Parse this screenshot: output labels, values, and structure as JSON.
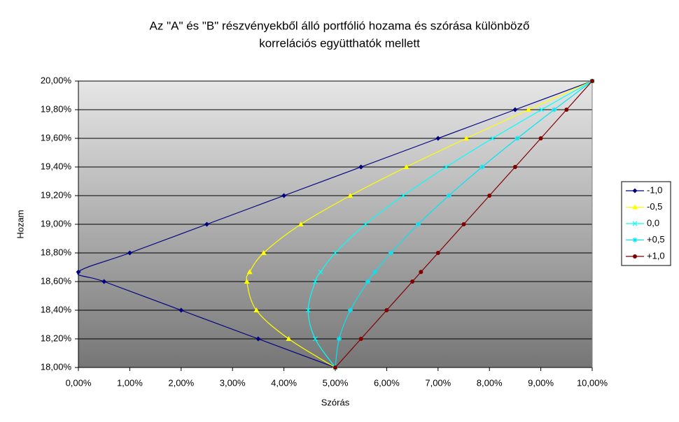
{
  "chart_data": {
    "type": "scatter",
    "title": [
      "Az \"A\" és \"B\" részvényekből álló portfólió hozama és szórása különböző",
      "korrelációs együtthatók mellett"
    ],
    "x_label": "Szórás",
    "y_label": "Hozam",
    "xlim": [
      0,
      10
    ],
    "ylim": [
      18,
      20
    ],
    "xticks": [
      {
        "value": 0,
        "label": "0,00%"
      },
      {
        "value": 1,
        "label": "1,00%"
      },
      {
        "value": 2,
        "label": "2,00%"
      },
      {
        "value": 3,
        "label": "3,00%"
      },
      {
        "value": 4,
        "label": "4,00%"
      },
      {
        "value": 5,
        "label": "5,00%"
      },
      {
        "value": 6,
        "label": "6,00%"
      },
      {
        "value": 7,
        "label": "7,00%"
      },
      {
        "value": 8,
        "label": "8,00%"
      },
      {
        "value": 9,
        "label": "9,00%"
      },
      {
        "value": 10,
        "label": "10,00%"
      }
    ],
    "yticks": [
      {
        "value": 18,
        "label": "18,00%"
      },
      {
        "value": 18.2,
        "label": "18,20%"
      },
      {
        "value": 18.4,
        "label": "18,40%"
      },
      {
        "value": 18.6,
        "label": "18,60%"
      },
      {
        "value": 18.8,
        "label": "18,80%"
      },
      {
        "value": 19,
        "label": "19,00%"
      },
      {
        "value": 19.2,
        "label": "19,20%"
      },
      {
        "value": 19.4,
        "label": "19,40%"
      },
      {
        "value": 19.6,
        "label": "19,60%"
      },
      {
        "value": 19.8,
        "label": "19,80%"
      },
      {
        "value": 20,
        "label": "20,00%"
      }
    ],
    "grid": true,
    "legend": "right",
    "series": [
      {
        "name": "-1,0",
        "color": "#000080",
        "marker": "diamond",
        "x": [
          5,
          3.5,
          2,
          0.5,
          0,
          1,
          2.5,
          4,
          5.5,
          7,
          8.5,
          10
        ],
        "values": [
          18,
          18.2,
          18.4,
          18.6,
          18.667,
          18.8,
          19,
          19.2,
          19.4,
          19.6,
          19.8,
          20
        ]
      },
      {
        "name": "-0,5",
        "color": "#ffff00",
        "marker": "triangle",
        "x": [
          5,
          4.093,
          3.464,
          3.279,
          3.333,
          3.606,
          4.33,
          5.292,
          6.384,
          7.55,
          8.761,
          10
        ],
        "values": [
          18,
          18.2,
          18.4,
          18.6,
          18.667,
          18.8,
          19,
          19.2,
          19.4,
          19.6,
          19.8,
          20
        ]
      },
      {
        "name": "0,0",
        "color": "#00ffff",
        "marker": "cross",
        "x": [
          5,
          4.61,
          4.472,
          4.61,
          4.714,
          5,
          5.59,
          6.325,
          7.159,
          8.062,
          9.014,
          10
        ],
        "values": [
          18,
          18.2,
          18.4,
          18.6,
          18.667,
          18.8,
          19,
          19.2,
          19.4,
          19.6,
          19.8,
          20
        ]
      },
      {
        "name": "+0,5",
        "color": "#00e6f5",
        "marker": "star",
        "x": [
          5,
          5.074,
          5.292,
          5.635,
          5.774,
          6.083,
          6.614,
          7.211,
          7.858,
          8.544,
          9.26,
          10
        ],
        "values": [
          18,
          18.2,
          18.4,
          18.6,
          18.667,
          18.8,
          19,
          19.2,
          19.4,
          19.6,
          19.8,
          20
        ]
      },
      {
        "name": "+1,0",
        "color": "#800000",
        "marker": "circle",
        "x": [
          5,
          5.5,
          6,
          6.5,
          6.667,
          7,
          7.5,
          8,
          8.5,
          9,
          9.5,
          10
        ],
        "values": [
          18,
          18.2,
          18.4,
          18.6,
          18.667,
          18.8,
          19,
          19.2,
          19.4,
          19.6,
          19.8,
          20
        ]
      }
    ]
  }
}
